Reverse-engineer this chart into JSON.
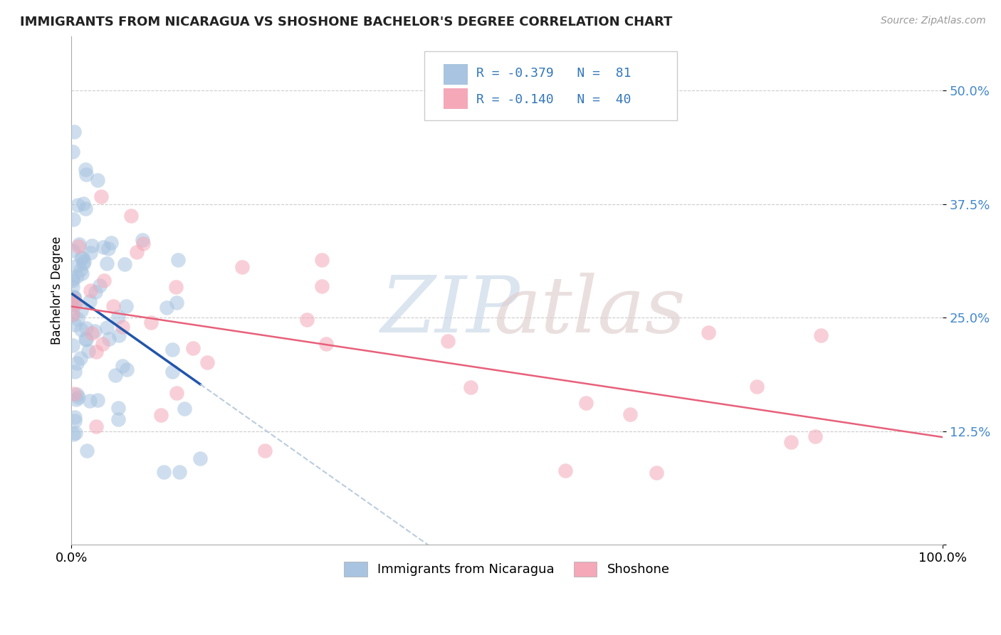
{
  "title": "IMMIGRANTS FROM NICARAGUA VS SHOSHONE BACHELOR'S DEGREE CORRELATION CHART",
  "source": "Source: ZipAtlas.com",
  "ylabel": "Bachelor's Degree",
  "blue_color": "#A8C4E0",
  "pink_color": "#F4A8B8",
  "blue_line_color": "#2255AA",
  "pink_line_color": "#E8607A",
  "dashed_line_color": "#BBCCDD",
  "legend_text1": "R = -0.379   N =  81",
  "legend_text2": "R = -0.140   N =  40",
  "legend_blue_sq": "#A8C4E0",
  "legend_pink_sq": "#F4A8B8",
  "blue_r": -0.379,
  "blue_n": 81,
  "pink_r": -0.14,
  "pink_n": 40,
  "xlim": [
    0.0,
    1.0
  ],
  "ylim": [
    0.0,
    0.56
  ],
  "yticks": [
    0.0,
    0.125,
    0.25,
    0.375,
    0.5
  ],
  "ytick_labels": [
    "",
    "12.5%",
    "25.0%",
    "37.5%",
    "50.0%"
  ],
  "xtick_left_label": "0.0%",
  "xtick_right_label": "100.0%",
  "watermark_zip": "ZIP",
  "watermark_atlas": "atlas",
  "title_fontsize": 13,
  "source_fontsize": 10,
  "tick_fontsize": 13,
  "legend_fontsize": 13,
  "ylabel_fontsize": 12
}
